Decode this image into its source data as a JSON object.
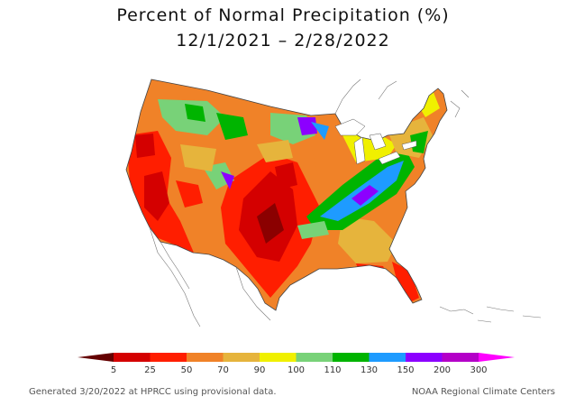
{
  "title": {
    "line1": "Percent of Normal Precipitation (%)",
    "line2": "12/1/2021 – 2/28/2022"
  },
  "legend": {
    "bins": [
      {
        "label": "5",
        "color": "#8b0000"
      },
      {
        "label": "25",
        "color": "#d40000"
      },
      {
        "label": "50",
        "color": "#ff1e00"
      },
      {
        "label": "70",
        "color": "#f08228"
      },
      {
        "label": "90",
        "color": "#e6b43c"
      },
      {
        "label": "100",
        "color": "#f0f000"
      },
      {
        "label": "110",
        "color": "#78d278"
      },
      {
        "label": "130",
        "color": "#00b400"
      },
      {
        "label": "150",
        "color": "#1e9bff"
      },
      {
        "label": "200",
        "color": "#8c00ff"
      },
      {
        "label": "300",
        "color": "#b400c8"
      }
    ],
    "overflow_color": "#ff00ff",
    "underflow_color": "#640000"
  },
  "footer": {
    "left": "Generated 3/20/2022 at HPRCC using provisional data.",
    "right": "NOAA Regional Climate Centers"
  }
}
